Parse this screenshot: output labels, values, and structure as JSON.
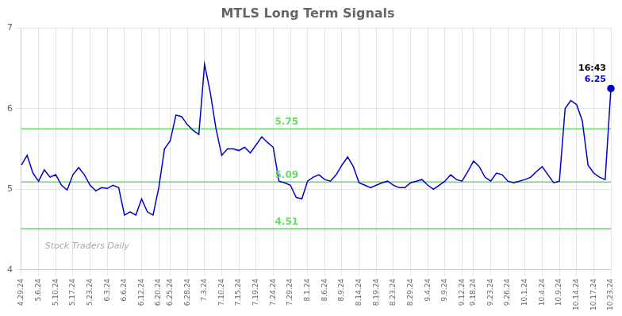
{
  "chart_data": {
    "type": "line",
    "title": "MTLS Long Term Signals",
    "categories": [
      "4.29.24",
      null,
      null,
      "5.6.24",
      null,
      null,
      "5.10.24",
      null,
      null,
      "5.17.24",
      null,
      null,
      "5.23.24",
      null,
      null,
      "6.3.24",
      null,
      null,
      "6.6.24",
      null,
      null,
      "6.12.24",
      null,
      null,
      "6.20.24",
      null,
      "6.25.24",
      null,
      null,
      "6.28.24",
      null,
      null,
      "7.3.24",
      null,
      null,
      "7.10.24",
      null,
      null,
      "7.15.24",
      null,
      null,
      "7.19.24",
      null,
      null,
      "7.24.24",
      null,
      null,
      "7.29.24",
      null,
      null,
      "8.1.24",
      null,
      null,
      "8.6.24",
      null,
      null,
      "8.9.24",
      null,
      null,
      "8.14.24",
      null,
      null,
      "8.19.24",
      null,
      null,
      "8.23.24",
      null,
      null,
      "8.29.24",
      null,
      null,
      "9.4.24",
      null,
      null,
      "9.9.24",
      null,
      null,
      "9.12.24",
      null,
      "9.18.24",
      null,
      null,
      "9.23.24",
      null,
      null,
      "9.26.24",
      null,
      null,
      "10.1.24",
      null,
      null,
      "10.4.24",
      null,
      null,
      "10.9.24",
      null,
      null,
      "10.14.24",
      null,
      null,
      "10.17.24",
      null,
      null,
      "10.23.24"
    ],
    "values": [
      5.3,
      5.42,
      5.2,
      5.1,
      5.24,
      5.15,
      5.18,
      5.05,
      4.99,
      5.18,
      5.27,
      5.18,
      5.05,
      4.98,
      5.02,
      5.01,
      5.05,
      5.02,
      4.68,
      4.72,
      4.68,
      4.88,
      4.72,
      4.68,
      5.02,
      5.5,
      5.6,
      5.92,
      5.9,
      5.8,
      5.73,
      5.68,
      6.55,
      6.2,
      5.75,
      5.42,
      5.5,
      5.5,
      5.48,
      5.52,
      5.45,
      5.55,
      5.65,
      5.58,
      5.52,
      5.1,
      5.08,
      5.05,
      4.9,
      4.88,
      5.1,
      5.15,
      5.18,
      5.12,
      5.1,
      5.18,
      5.3,
      5.4,
      5.28,
      5.08,
      5.05,
      5.02,
      5.05,
      5.08,
      5.1,
      5.05,
      5.02,
      5.02,
      5.08,
      5.1,
      5.12,
      5.05,
      5.0,
      5.05,
      5.1,
      5.18,
      5.12,
      5.1,
      5.22,
      5.35,
      5.28,
      5.15,
      5.1,
      5.2,
      5.18,
      5.1,
      5.08,
      5.1,
      5.12,
      5.15,
      5.22,
      5.28,
      5.18,
      5.08,
      5.1,
      6.0,
      6.1,
      6.05,
      5.85,
      5.3,
      5.2,
      5.15,
      5.12,
      6.25
    ],
    "color": "#0000cc",
    "ylim": [
      4,
      7
    ],
    "yticks": [
      4,
      5,
      6,
      7
    ],
    "grid": true,
    "hlines": [
      {
        "value": 5.75,
        "label": "5.75",
        "color": "#66dd66"
      },
      {
        "value": 5.09,
        "label": "5.09",
        "color": "#66dd66"
      },
      {
        "value": 4.51,
        "label": "4.51",
        "color": "#66dd66"
      }
    ],
    "annotations": [
      {
        "text": "16:43",
        "color": "#000000"
      },
      {
        "text": "6.25",
        "color": "#0000cc"
      }
    ],
    "watermark": {
      "text": "Stock Traders Daily",
      "color": "#aaaaaa"
    }
  }
}
